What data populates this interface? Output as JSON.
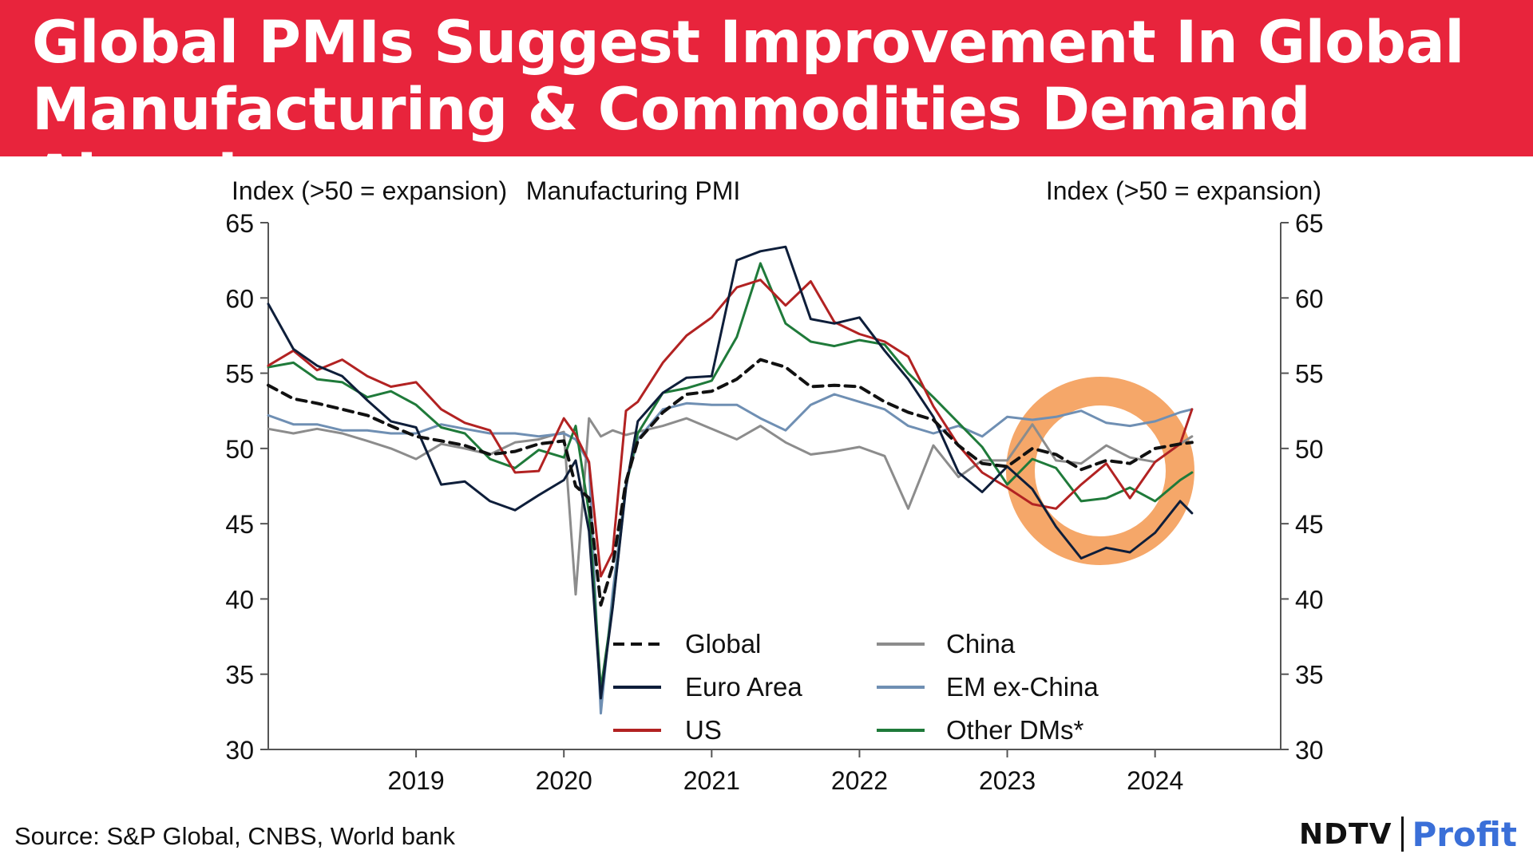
{
  "header": {
    "title": "Global PMIs Suggest Improvement In Global Manufacturing & Commodities Demand Ahead"
  },
  "footer": {
    "source": "Source: S&P Global, CNBS, World bank",
    "brand_ndtv": "NDTV",
    "brand_profit": "Profit"
  },
  "colors": {
    "banner": "#e8243c",
    "highlight_ring": "#f4a261"
  },
  "chart_data": {
    "type": "line",
    "title": "Manufacturing PMI",
    "ylabel_left": "Index (>50 = expansion)",
    "ylabel_right": "Index (>50 = expansion)",
    "ylim": [
      30,
      65
    ],
    "yticks": [
      30,
      35,
      40,
      45,
      50,
      55,
      60,
      65
    ],
    "xlim": [
      2018.0,
      2024.85
    ],
    "xticks": [
      2019,
      2020,
      2021,
      2022,
      2023,
      2024
    ],
    "xticklabels": [
      "2019",
      "2020",
      "2021",
      "2022",
      "2023",
      "2024"
    ],
    "legend": "bottom-right",
    "annotation": "highlight circle around late-2023 to early-2024",
    "series": [
      {
        "name": "Global",
        "color": "#111111",
        "dash": "dashed",
        "x": [
          2018.0,
          2018.17,
          2018.33,
          2018.5,
          2018.67,
          2018.83,
          2019.0,
          2019.17,
          2019.33,
          2019.5,
          2019.67,
          2019.83,
          2020.0,
          2020.08,
          2020.17,
          2020.25,
          2020.33,
          2020.42,
          2020.5,
          2020.67,
          2020.83,
          2021.0,
          2021.17,
          2021.33,
          2021.5,
          2021.67,
          2021.83,
          2022.0,
          2022.17,
          2022.33,
          2022.5,
          2022.67,
          2022.83,
          2023.0,
          2023.17,
          2023.33,
          2023.5,
          2023.67,
          2023.83,
          2024.0,
          2024.17,
          2024.25
        ],
        "y": [
          54.2,
          53.3,
          53.0,
          52.6,
          52.2,
          51.5,
          50.8,
          50.5,
          50.2,
          49.6,
          49.8,
          50.3,
          50.5,
          47.5,
          46.7,
          39.6,
          42.2,
          47.8,
          50.5,
          52.4,
          53.6,
          53.8,
          54.6,
          55.9,
          55.4,
          54.1,
          54.2,
          54.1,
          53.1,
          52.4,
          51.9,
          50.2,
          49.0,
          48.8,
          50.0,
          49.6,
          48.6,
          49.2,
          49.0,
          50.0,
          50.3,
          50.4
        ]
      },
      {
        "name": "Euro Area",
        "color": "#0e1e3a",
        "dash": "solid",
        "x": [
          2018.0,
          2018.17,
          2018.33,
          2018.5,
          2018.67,
          2018.83,
          2019.0,
          2019.17,
          2019.33,
          2019.5,
          2019.67,
          2019.83,
          2020.0,
          2020.08,
          2020.17,
          2020.25,
          2020.33,
          2020.42,
          2020.5,
          2020.67,
          2020.83,
          2021.0,
          2021.17,
          2021.33,
          2021.5,
          2021.67,
          2021.83,
          2022.0,
          2022.17,
          2022.33,
          2022.5,
          2022.67,
          2022.83,
          2023.0,
          2023.17,
          2023.33,
          2023.5,
          2023.67,
          2023.83,
          2024.0,
          2024.17,
          2024.25
        ],
        "y": [
          59.6,
          56.6,
          55.5,
          54.8,
          53.2,
          51.8,
          51.4,
          47.6,
          47.8,
          46.5,
          45.9,
          46.9,
          47.9,
          49.2,
          44.5,
          33.4,
          39.4,
          47.4,
          51.8,
          53.7,
          54.7,
          54.8,
          62.5,
          63.1,
          63.4,
          58.6,
          58.3,
          58.7,
          56.5,
          54.6,
          52.1,
          48.4,
          47.1,
          48.8,
          47.3,
          44.8,
          42.7,
          43.4,
          43.1,
          44.4,
          46.5,
          45.7
        ]
      },
      {
        "name": "US",
        "color": "#b22222",
        "dash": "solid",
        "x": [
          2018.0,
          2018.17,
          2018.33,
          2018.5,
          2018.67,
          2018.83,
          2019.0,
          2019.17,
          2019.33,
          2019.5,
          2019.67,
          2019.83,
          2020.0,
          2020.08,
          2020.17,
          2020.25,
          2020.33,
          2020.42,
          2020.5,
          2020.67,
          2020.83,
          2021.0,
          2021.17,
          2021.33,
          2021.5,
          2021.67,
          2021.83,
          2022.0,
          2022.17,
          2022.33,
          2022.5,
          2022.67,
          2022.83,
          2023.0,
          2023.17,
          2023.33,
          2023.5,
          2023.67,
          2023.83,
          2024.0,
          2024.17,
          2024.25
        ],
        "y": [
          55.5,
          56.5,
          55.2,
          55.9,
          54.8,
          54.1,
          54.4,
          52.6,
          51.7,
          51.2,
          48.4,
          48.5,
          52.0,
          50.9,
          49.1,
          41.5,
          43.1,
          52.5,
          53.1,
          55.7,
          57.5,
          58.7,
          60.7,
          61.2,
          59.5,
          61.1,
          58.4,
          57.6,
          57.1,
          56.1,
          52.8,
          50.2,
          48.4,
          47.4,
          46.3,
          46.0,
          47.6,
          49.0,
          46.7,
          49.1,
          50.3,
          52.6
        ]
      },
      {
        "name": "China",
        "color": "#8c8c8c",
        "dash": "solid",
        "x": [
          2018.0,
          2018.17,
          2018.33,
          2018.5,
          2018.67,
          2018.83,
          2019.0,
          2019.17,
          2019.33,
          2019.5,
          2019.67,
          2019.83,
          2020.0,
          2020.08,
          2020.17,
          2020.25,
          2020.33,
          2020.42,
          2020.5,
          2020.67,
          2020.83,
          2021.0,
          2021.17,
          2021.33,
          2021.5,
          2021.67,
          2021.83,
          2022.0,
          2022.17,
          2022.33,
          2022.5,
          2022.67,
          2022.83,
          2023.0,
          2023.17,
          2023.33,
          2023.5,
          2023.67,
          2023.83,
          2024.0,
          2024.17,
          2024.25
        ],
        "y": [
          51.3,
          51.0,
          51.3,
          51.0,
          50.5,
          50.0,
          49.3,
          50.3,
          50.0,
          49.6,
          50.4,
          50.6,
          51.1,
          40.3,
          52.0,
          50.8,
          51.2,
          50.9,
          51.1,
          51.5,
          52.0,
          51.3,
          50.6,
          51.5,
          50.4,
          49.6,
          49.8,
          50.1,
          49.5,
          46.0,
          50.2,
          48.1,
          49.2,
          49.2,
          51.6,
          49.2,
          49.0,
          50.2,
          49.4,
          49.1,
          50.3,
          50.8
        ]
      },
      {
        "name": "EM ex-China",
        "color": "#6f8fb3",
        "dash": "solid",
        "x": [
          2018.0,
          2018.17,
          2018.33,
          2018.5,
          2018.67,
          2018.83,
          2019.0,
          2019.17,
          2019.33,
          2019.5,
          2019.67,
          2019.83,
          2020.0,
          2020.08,
          2020.17,
          2020.25,
          2020.33,
          2020.42,
          2020.5,
          2020.67,
          2020.83,
          2021.0,
          2021.17,
          2021.33,
          2021.5,
          2021.67,
          2021.83,
          2022.0,
          2022.17,
          2022.33,
          2022.5,
          2022.67,
          2022.83,
          2023.0,
          2023.17,
          2023.33,
          2023.5,
          2023.67,
          2023.83,
          2024.0,
          2024.17,
          2024.25
        ],
        "y": [
          52.2,
          51.6,
          51.6,
          51.2,
          51.2,
          51.0,
          51.0,
          51.6,
          51.3,
          51.0,
          51.0,
          50.8,
          51.0,
          50.6,
          49.0,
          32.4,
          40.4,
          47.6,
          50.6,
          52.6,
          53.0,
          52.9,
          52.9,
          52.0,
          51.2,
          52.9,
          53.6,
          53.1,
          52.6,
          51.5,
          51.0,
          51.5,
          50.8,
          52.1,
          51.9,
          52.1,
          52.5,
          51.7,
          51.5,
          51.8,
          52.4,
          52.6
        ]
      },
      {
        "name": "Other DMs*",
        "color": "#1f7a3a",
        "dash": "solid",
        "x": [
          2018.0,
          2018.17,
          2018.33,
          2018.5,
          2018.67,
          2018.83,
          2019.0,
          2019.17,
          2019.33,
          2019.5,
          2019.67,
          2019.83,
          2020.0,
          2020.08,
          2020.17,
          2020.25,
          2020.33,
          2020.42,
          2020.5,
          2020.67,
          2020.83,
          2021.0,
          2021.17,
          2021.33,
          2021.5,
          2021.67,
          2021.83,
          2022.0,
          2022.17,
          2022.33,
          2022.5,
          2022.67,
          2022.83,
          2023.0,
          2023.17,
          2023.33,
          2023.5,
          2023.67,
          2023.83,
          2024.0,
          2024.17,
          2024.25
        ],
        "y": [
          55.4,
          55.7,
          54.6,
          54.4,
          53.4,
          53.8,
          52.9,
          51.4,
          51.0,
          49.3,
          48.7,
          49.9,
          49.4,
          51.5,
          45.7,
          34.0,
          39.5,
          47.5,
          51.0,
          53.7,
          54.0,
          54.5,
          57.4,
          62.3,
          58.3,
          57.1,
          56.8,
          57.2,
          56.9,
          55.0,
          53.4,
          51.7,
          50.1,
          47.6,
          49.3,
          48.7,
          46.5,
          46.7,
          47.4,
          46.5,
          47.9,
          48.4
        ]
      }
    ]
  }
}
